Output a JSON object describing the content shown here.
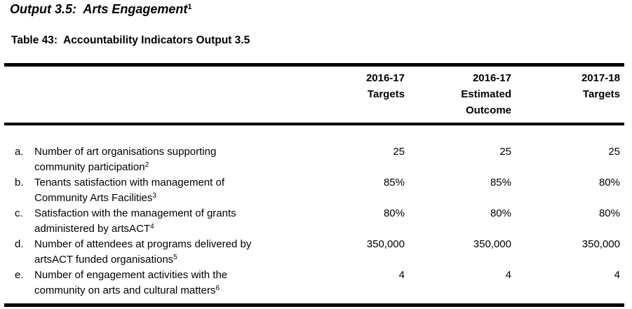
{
  "page": {
    "title": {
      "text": "Output 3.5:  Arts Engagement",
      "superscript": "1"
    },
    "caption": "Table 43:  Accountability Indicators Output 3.5"
  },
  "table": {
    "columns": [
      {
        "lines": [
          "2016-17",
          "Targets"
        ]
      },
      {
        "lines": [
          "2016-17",
          "Estimated",
          "Outcome"
        ]
      },
      {
        "lines": [
          "2017-18",
          "Targets"
        ]
      }
    ],
    "rows": [
      {
        "marker": "a.",
        "label_lines": [
          "Number of art organisations supporting",
          "community participation"
        ],
        "footnote": "2",
        "values": [
          "25",
          "25",
          "25"
        ]
      },
      {
        "marker": "b.",
        "label_lines": [
          "Tenants satisfaction with management of",
          "Community Arts Facilities"
        ],
        "footnote": "3",
        "values": [
          "85%",
          "85%",
          "80%"
        ]
      },
      {
        "marker": "c.",
        "label_lines": [
          "Satisfaction with the management of grants",
          "administered by artsACT"
        ],
        "footnote": "4",
        "values": [
          "80%",
          "80%",
          "80%"
        ]
      },
      {
        "marker": "d.",
        "label_lines": [
          "Number of attendees at programs delivered by",
          "artsACT funded organisations"
        ],
        "footnote": "5",
        "values": [
          "350,000",
          "350,000",
          "350,000"
        ]
      },
      {
        "marker": "e.",
        "label_lines": [
          "Number of engagement activities with the",
          "community on arts and cultural matters"
        ],
        "footnote": "6",
        "values": [
          "4",
          "4",
          "4"
        ]
      }
    ]
  },
  "colors": {
    "background": "#ffffff",
    "text": "#000000",
    "rule": "#000000"
  }
}
